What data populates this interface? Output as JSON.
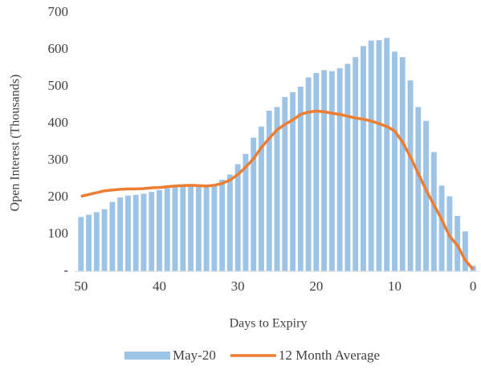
{
  "chart_data": {
    "type": "bar_line",
    "y_label": "Open Interest (Thousands)",
    "x_label": "Days to Expiry",
    "x": [
      50,
      49,
      48,
      47,
      46,
      45,
      44,
      43,
      42,
      41,
      40,
      39,
      38,
      37,
      36,
      35,
      34,
      33,
      32,
      31,
      30,
      29,
      28,
      27,
      26,
      25,
      24,
      23,
      22,
      21,
      20,
      19,
      18,
      17,
      16,
      15,
      14,
      13,
      12,
      11,
      10,
      9,
      8,
      7,
      6,
      5,
      4,
      3,
      2,
      1,
      0
    ],
    "series": [
      {
        "name": "May-20",
        "type": "bar",
        "color": "#9dc3e6",
        "values": [
          147,
          153,
          160,
          168,
          188,
          200,
          205,
          207,
          210,
          215,
          220,
          225,
          228,
          230,
          232,
          230,
          228,
          235,
          248,
          262,
          290,
          318,
          362,
          392,
          435,
          445,
          472,
          485,
          500,
          525,
          537,
          545,
          542,
          550,
          562,
          580,
          610,
          625,
          626,
          632,
          595,
          580,
          517,
          445,
          407,
          323,
          232,
          203,
          150,
          108,
          15
        ]
      },
      {
        "name": "12 Month Average",
        "type": "line",
        "color": "#ed7d31",
        "values": [
          203,
          208,
          213,
          218,
          220,
          222,
          223,
          223,
          224,
          226,
          227,
          229,
          231,
          232,
          233,
          232,
          231,
          233,
          238,
          247,
          262,
          282,
          305,
          335,
          360,
          383,
          398,
          410,
          425,
          431,
          434,
          432,
          428,
          425,
          420,
          415,
          412,
          407,
          400,
          392,
          380,
          350,
          310,
          265,
          220,
          180,
          140,
          95,
          70,
          30,
          5
        ]
      }
    ],
    "xlim": [
      50.8,
      -0.8
    ],
    "xticks": [
      50,
      40,
      30,
      20,
      10,
      0
    ],
    "ylim": [
      0,
      700
    ],
    "yticks": [
      {
        "value": 0,
        "label": "-"
      },
      100,
      200,
      300,
      400,
      500,
      600,
      700
    ],
    "grid": false,
    "legend": "bottom"
  }
}
